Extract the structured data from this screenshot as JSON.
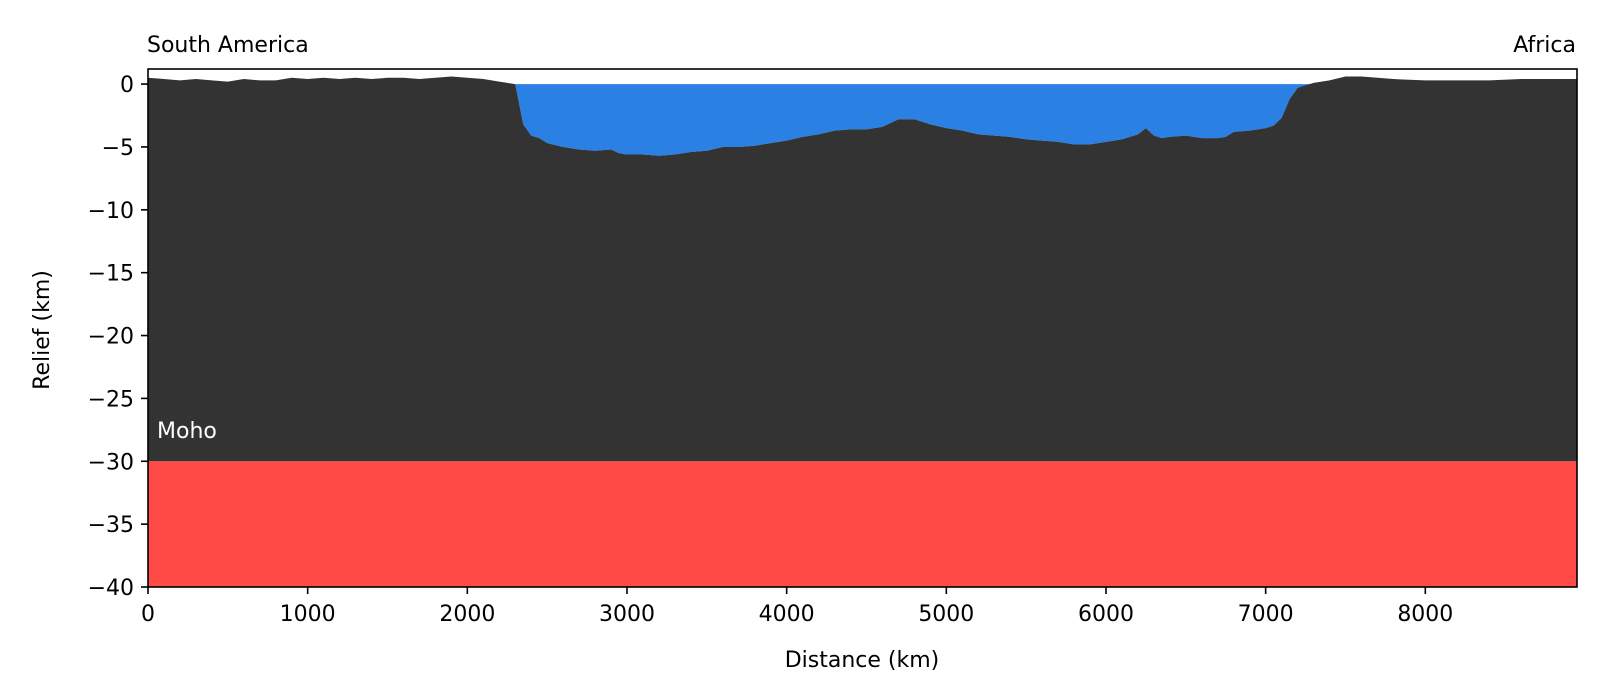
{
  "chart_data": {
    "type": "area",
    "xlabel": "Distance (km)",
    "ylabel": "Relief (km)",
    "xlim": [
      0,
      8950
    ],
    "ylim": [
      -40,
      1.2
    ],
    "x_ticks": [
      0,
      1000,
      2000,
      3000,
      4000,
      5000,
      6000,
      7000,
      8000
    ],
    "y_ticks": [
      0,
      -5,
      -10,
      -15,
      -20,
      -25,
      -30,
      -35,
      -40
    ],
    "x_tick_labels": [
      "0",
      "1000",
      "2000",
      "3000",
      "4000",
      "5000",
      "6000",
      "7000",
      "8000"
    ],
    "y_tick_labels": [
      "0",
      "−5",
      "−10",
      "−15",
      "−20",
      "−25",
      "−30",
      "−35",
      "−40"
    ],
    "left_label": "South America",
    "right_label": "Africa",
    "moho_label": "Moho",
    "moho_depth": -30,
    "sea_level": 0,
    "grid": false,
    "colors": {
      "crust": "#333333",
      "ocean": "#2a80e3",
      "mantle": "#ff4a46"
    },
    "series": [
      {
        "name": "",
        "x": [
          0,
          100,
          200,
          300,
          400,
          500,
          600,
          700,
          800,
          900,
          1000,
          1100,
          1200,
          1300,
          1400,
          1500,
          1600,
          1700,
          1800,
          1900,
          2000,
          2100,
          2200,
          2300,
          2350,
          2400,
          2450,
          2500,
          2600,
          2700,
          2800,
          2900,
          2950,
          3000,
          3100,
          3200,
          3300,
          3400,
          3500,
          3600,
          3700,
          3800,
          3900,
          4000,
          4100,
          4200,
          4300,
          4400,
          4500,
          4600,
          4700,
          4800,
          4900,
          5000,
          5100,
          5200,
          5300,
          5400,
          5500,
          5600,
          5700,
          5800,
          5900,
          6000,
          6100,
          6200,
          6250,
          6300,
          6350,
          6400,
          6500,
          6600,
          6700,
          6750,
          6800,
          6900,
          7000,
          7050,
          7100,
          7150,
          7200,
          7300,
          7400,
          7500,
          7600,
          7700,
          7800,
          8000,
          8200,
          8400,
          8600,
          8800,
          8950
        ],
        "y": [
          0.5,
          0.4,
          0.3,
          0.4,
          0.3,
          0.2,
          0.4,
          0.3,
          0.3,
          0.5,
          0.4,
          0.5,
          0.4,
          0.5,
          0.4,
          0.5,
          0.5,
          0.4,
          0.5,
          0.6,
          0.5,
          0.4,
          0.2,
          0.0,
          -3.2,
          -4.1,
          -4.3,
          -4.7,
          -5.0,
          -5.2,
          -5.3,
          -5.2,
          -5.5,
          -5.6,
          -5.6,
          -5.7,
          -5.6,
          -5.4,
          -5.3,
          -5.0,
          -5.0,
          -4.9,
          -4.7,
          -4.5,
          -4.2,
          -4.0,
          -3.7,
          -3.6,
          -3.6,
          -3.4,
          -2.8,
          -2.8,
          -3.2,
          -3.5,
          -3.7,
          -4.0,
          -4.1,
          -4.2,
          -4.4,
          -4.5,
          -4.6,
          -4.8,
          -4.8,
          -4.6,
          -4.4,
          -4.0,
          -3.5,
          -4.1,
          -4.3,
          -4.2,
          -4.1,
          -4.3,
          -4.3,
          -4.2,
          -3.8,
          -3.7,
          -3.5,
          -3.3,
          -2.7,
          -1.2,
          -0.3,
          0.1,
          0.3,
          0.6,
          0.6,
          0.5,
          0.4,
          0.3,
          0.3,
          0.3,
          0.4,
          0.4,
          0.4
        ]
      }
    ]
  }
}
